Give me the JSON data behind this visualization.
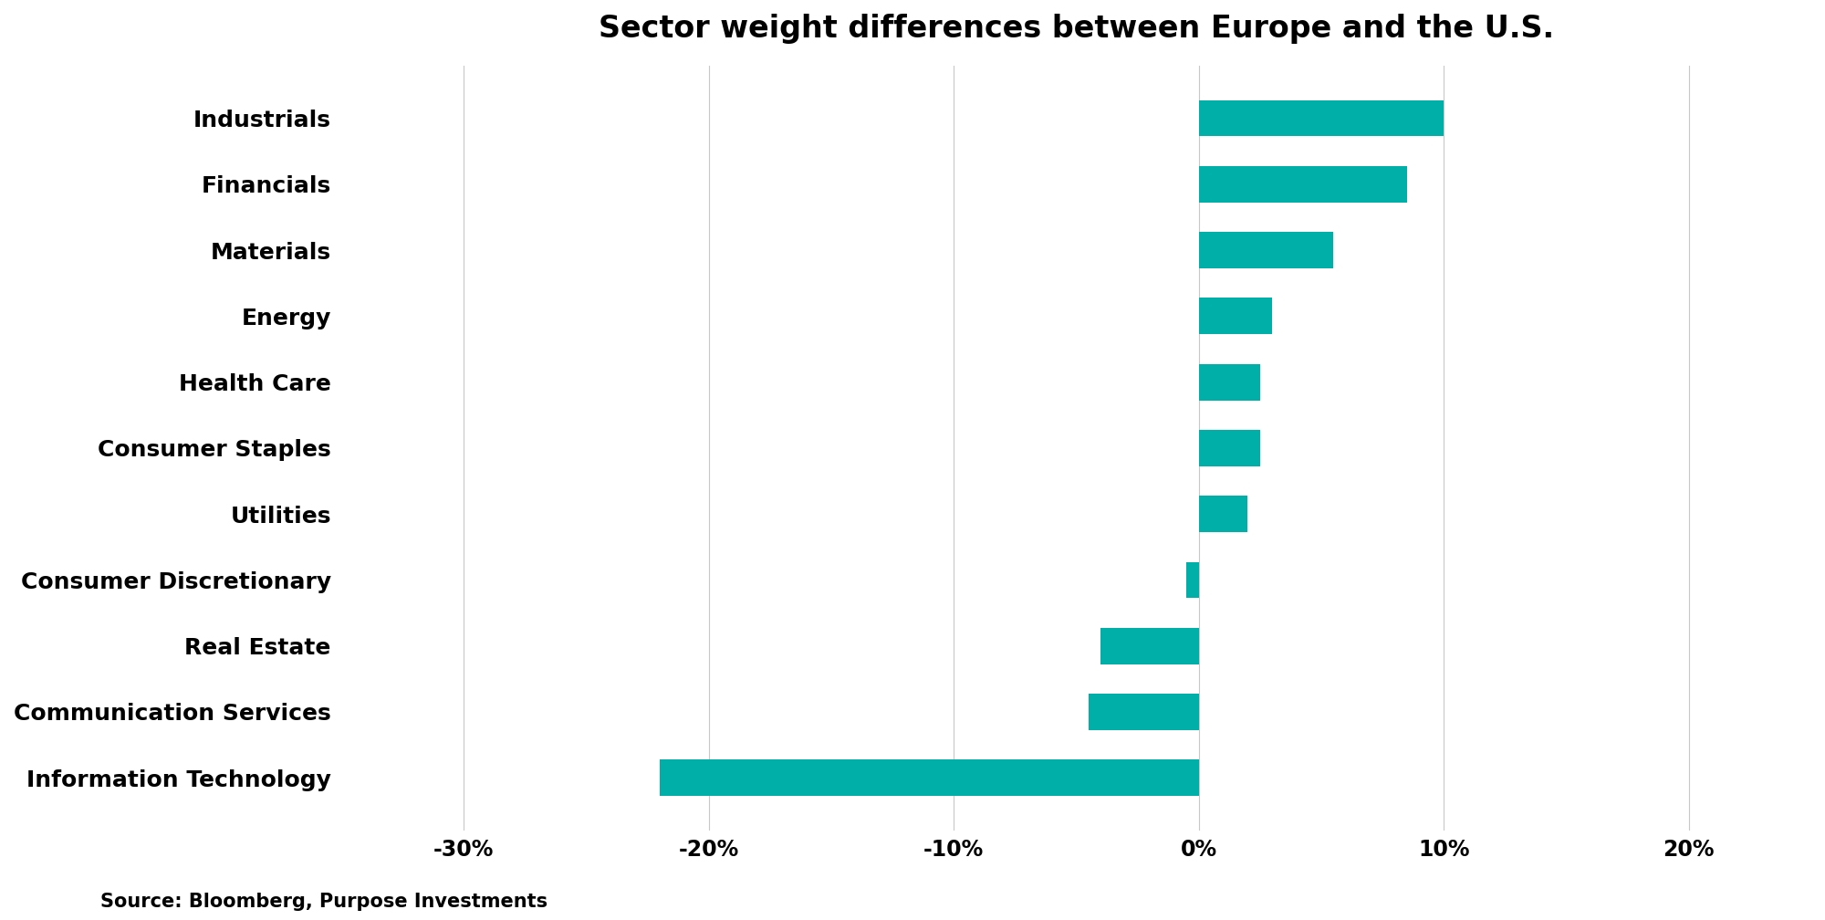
{
  "title": "Sector weight differences between Europe and the U.S.",
  "categories": [
    "Information Technology",
    "Communication Services",
    "Real Estate",
    "Consumer Discretionary",
    "Utilities",
    "Consumer Staples",
    "Health Care",
    "Energy",
    "Materials",
    "Financials",
    "Industrials"
  ],
  "values": [
    -22.0,
    -4.5,
    -4.0,
    -0.5,
    2.0,
    2.5,
    2.5,
    3.0,
    5.5,
    8.5,
    10.0
  ],
  "bar_color": "#00B0A8",
  "background_color": "#ffffff",
  "xlim": [
    -35,
    25
  ],
  "xticks": [
    -30,
    -20,
    -10,
    0,
    10,
    20
  ],
  "xticklabels": [
    "-30%",
    "-20%",
    "-10%",
    "0%",
    "10%",
    "20%"
  ],
  "title_fontsize": 24,
  "label_fontsize": 18,
  "tick_fontsize": 17,
  "source_text": "Source: Bloomberg, Purpose Investments",
  "source_fontsize": 15,
  "grid_color": "#c8c8c8",
  "bar_height": 0.55
}
